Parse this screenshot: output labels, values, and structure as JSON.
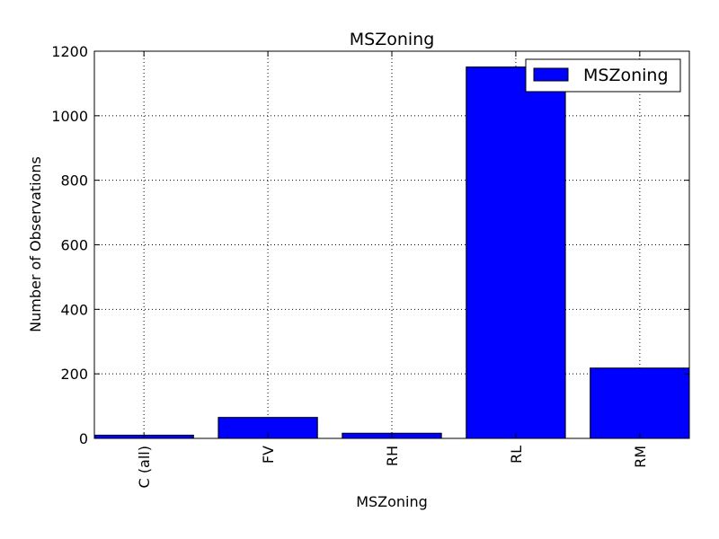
{
  "chart_data": {
    "type": "bar",
    "title": "MSZoning",
    "xlabel": "MSZoning",
    "ylabel": "Number of Observations",
    "categories": [
      "C (all)",
      "FV",
      "RH",
      "RL",
      "RM"
    ],
    "series": [
      {
        "name": "MSZoning",
        "values": [
          10,
          65,
          16,
          1151,
          218
        ]
      }
    ],
    "ylim": [
      0,
      1200
    ],
    "yticks": [
      "0",
      "200",
      "400",
      "600",
      "800",
      "1000",
      "1200"
    ],
    "grid": true,
    "legend_position": "top-right",
    "tick_label_rotation": "vertical",
    "bar_color": "#0000ff"
  }
}
